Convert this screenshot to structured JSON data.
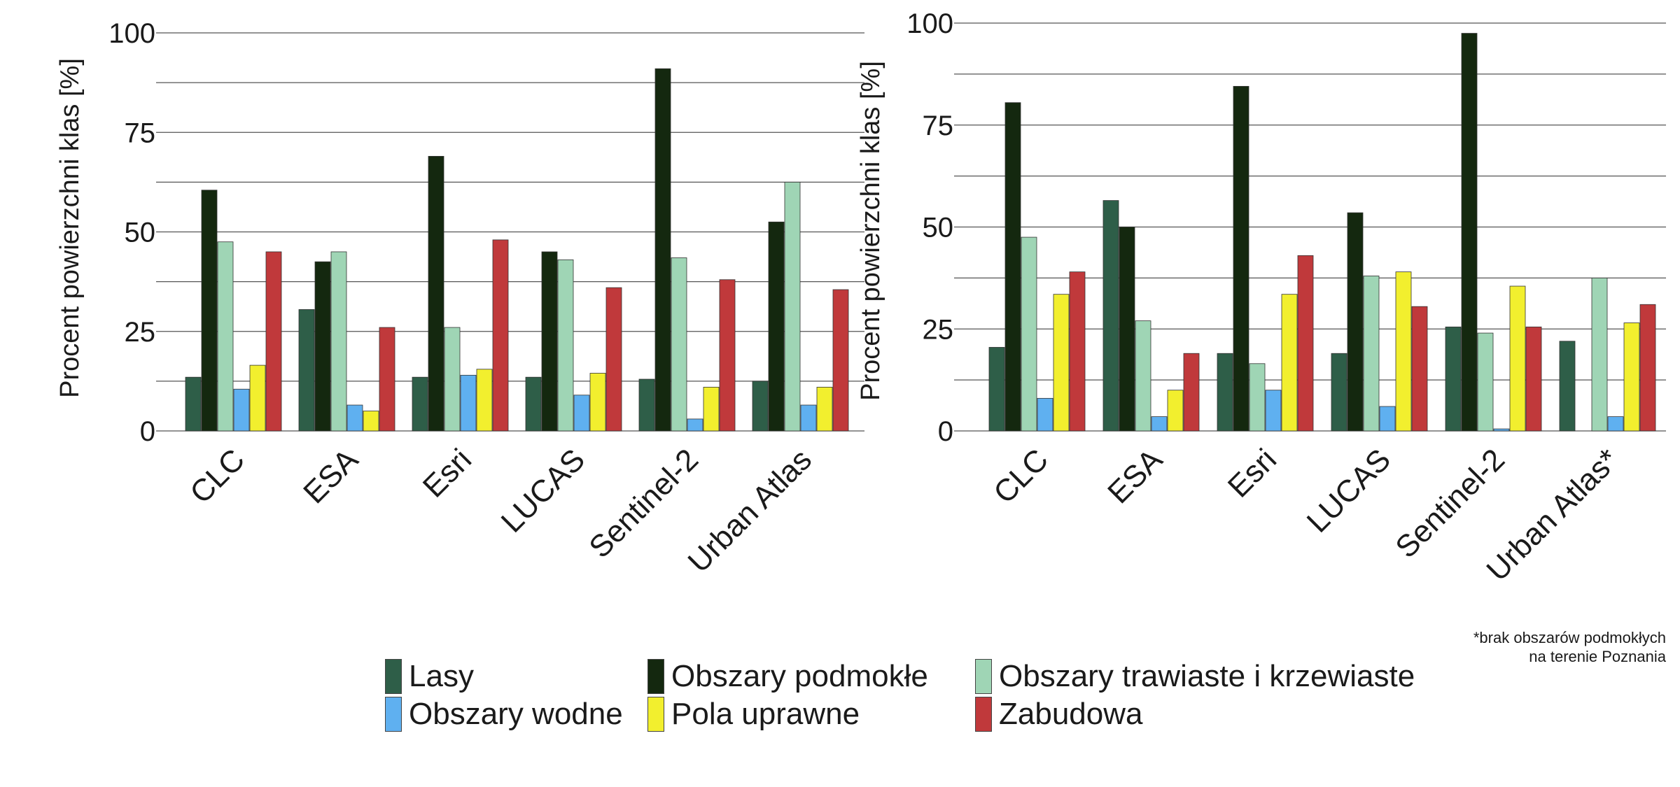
{
  "colors": {
    "Lasy": "#2e5e48",
    "Obszary podmokłe": "#14280f",
    "Obszary trawiaste i krzewiaste": "#9fd5b5",
    "Obszary wodne": "#5fb0f0",
    "Pola uprawne": "#f2ef2e",
    "Zabudowa": "#c0393b"
  },
  "legend": [
    {
      "label": "Lasy",
      "key": "Lasy"
    },
    {
      "label": "Obszary podmokłe",
      "key": "Obszary podmokłe"
    },
    {
      "label": "Obszary trawiaste i krzewiaste",
      "key": "Obszary trawiaste i krzewiaste"
    },
    {
      "label": "Obszary wodne",
      "key": "Obszary wodne"
    },
    {
      "label": "Pola uprawne",
      "key": "Pola uprawne"
    },
    {
      "label": "Zabudowa",
      "key": "Zabudowa"
    }
  ],
  "footnote": [
    "*brak obszarów podmokłych",
    "na terenie Poznania"
  ],
  "chart_data": [
    {
      "type": "bar",
      "ylabel": "Procent powierzchni klas [%]",
      "ylim": [
        0,
        100
      ],
      "yticks": [
        0,
        25,
        50,
        75,
        100
      ],
      "grid": true,
      "legend_position": "bottom",
      "categories": [
        "CLC",
        "ESA",
        "Esri",
        "LUCAS",
        "Sentinel-2",
        "Urban Atlas"
      ],
      "series": [
        {
          "name": "Lasy",
          "values": [
            13.5,
            30.5,
            13.5,
            13.5,
            13.0,
            12.5
          ]
        },
        {
          "name": "Obszary podmokłe",
          "values": [
            60.5,
            42.5,
            69.0,
            45.0,
            91.0,
            52.5
          ]
        },
        {
          "name": "Obszary trawiaste i krzewiaste",
          "values": [
            47.5,
            45.0,
            26.0,
            43.0,
            43.5,
            62.5
          ]
        },
        {
          "name": "Obszary wodne",
          "values": [
            10.5,
            6.5,
            14.0,
            9.0,
            3.0,
            6.5
          ]
        },
        {
          "name": "Pola uprawne",
          "values": [
            16.5,
            5.0,
            15.5,
            14.5,
            11.0,
            11.0
          ]
        },
        {
          "name": "Zabudowa",
          "values": [
            45.0,
            26.0,
            48.0,
            36.0,
            38.0,
            35.5
          ]
        }
      ]
    },
    {
      "type": "bar",
      "ylabel": "Procent powierzchni klas [%]",
      "ylim": [
        0,
        100
      ],
      "yticks": [
        0,
        25,
        50,
        75,
        100
      ],
      "grid": true,
      "legend_position": "bottom",
      "categories": [
        "CLC",
        "ESA",
        "Esri",
        "LUCAS",
        "Sentinel-2",
        "Urban Atlas*"
      ],
      "series": [
        {
          "name": "Lasy",
          "values": [
            20.5,
            56.5,
            19.0,
            19.0,
            25.5,
            22.0
          ]
        },
        {
          "name": "Obszary podmokłe",
          "values": [
            80.5,
            50.0,
            84.5,
            53.5,
            97.5,
            null
          ]
        },
        {
          "name": "Obszary trawiaste i krzewiaste",
          "values": [
            47.5,
            27.0,
            16.5,
            38.0,
            24.0,
            37.5
          ]
        },
        {
          "name": "Obszary wodne",
          "values": [
            8.0,
            3.5,
            10.0,
            6.0,
            0.5,
            3.5
          ]
        },
        {
          "name": "Pola uprawne",
          "values": [
            33.5,
            10.0,
            33.5,
            39.0,
            35.5,
            26.5
          ]
        },
        {
          "name": "Zabudowa",
          "values": [
            39.0,
            19.0,
            43.0,
            30.5,
            25.5,
            31.0
          ]
        }
      ]
    }
  ]
}
